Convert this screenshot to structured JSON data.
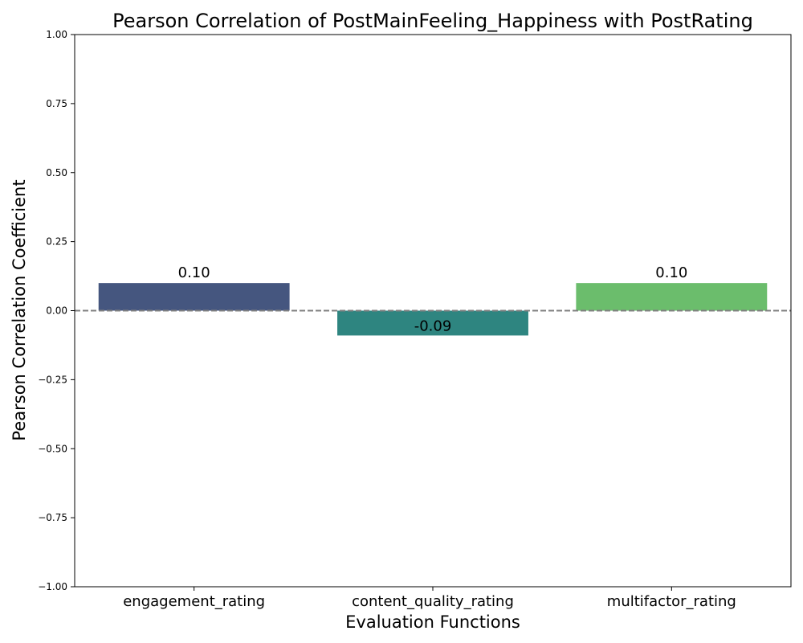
{
  "chart_data": {
    "type": "bar",
    "title": "Pearson Correlation of PostMainFeeling_Happiness with PostRating",
    "xlabel": "Evaluation Functions",
    "ylabel": "Pearson Correlation Coefficient",
    "categories": [
      "engagement_rating",
      "content_quality_rating",
      "multifactor_rating"
    ],
    "values": [
      0.1,
      -0.09,
      0.1
    ],
    "data_labels": [
      "0.10",
      "-0.09",
      "0.10"
    ],
    "colors": [
      "#45567f",
      "#2e8580",
      "#6bbd6c"
    ],
    "ylim": [
      -1.0,
      1.0
    ],
    "yticks": [
      -1.0,
      -0.75,
      -0.5,
      -0.25,
      0.0,
      0.25,
      0.5,
      0.75,
      1.0
    ],
    "ytick_labels": [
      "−1.00",
      "−0.75",
      "−0.50",
      "−0.25",
      "0.00",
      "0.25",
      "0.50",
      "0.75",
      "1.00"
    ],
    "reference_line": {
      "y": 0,
      "style": "dashed",
      "color": "#808080"
    },
    "grid": false,
    "legend": "none"
  }
}
